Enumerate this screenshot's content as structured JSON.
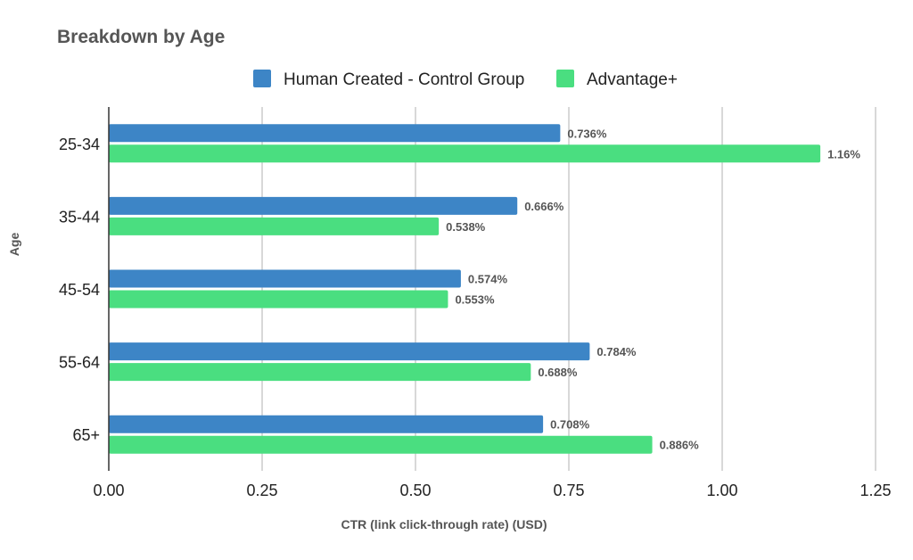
{
  "chart_data": {
    "type": "bar",
    "orientation": "horizontal",
    "title": "Breakdown by Age",
    "xlabel": "CTR (link click-through rate) (USD)",
    "ylabel": "Age",
    "xlim": [
      0,
      1.25
    ],
    "x_ticks": [
      "0.00",
      "0.25",
      "0.50",
      "0.75",
      "1.00",
      "1.25"
    ],
    "x_tick_values": [
      0,
      0.25,
      0.5,
      0.75,
      1.0,
      1.25
    ],
    "grid": true,
    "legend_position": "top",
    "categories": [
      "25-34",
      "35-44",
      "45-54",
      "55-64",
      "65+"
    ],
    "series": [
      {
        "name": "Human Created - Control Group",
        "color": "#3d85c6",
        "values": [
          0.736,
          0.666,
          0.574,
          0.784,
          0.708
        ],
        "labels": [
          "0.736%",
          "0.666%",
          "0.574%",
          "0.784%",
          "0.708%"
        ]
      },
      {
        "name": "Advantage+",
        "color": "#4ade80",
        "values": [
          1.16,
          0.538,
          0.553,
          0.688,
          0.886
        ],
        "labels": [
          "1.16%",
          "0.538%",
          "0.553%",
          "0.688%",
          "0.886%"
        ]
      }
    ]
  }
}
